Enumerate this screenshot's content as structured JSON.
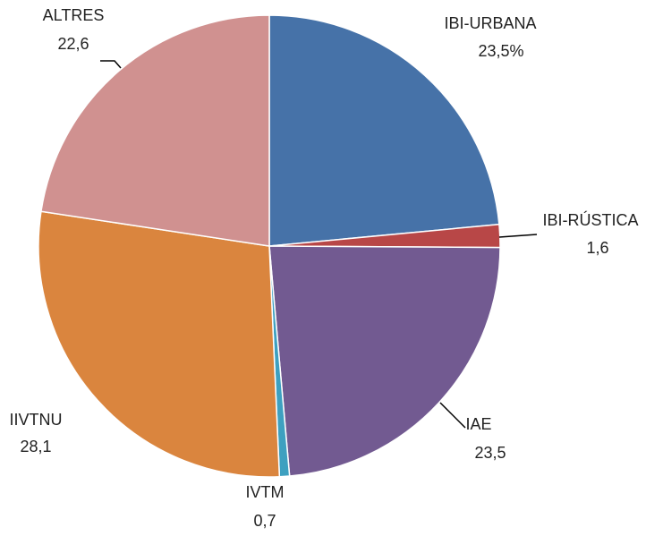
{
  "chart_data": {
    "type": "pie",
    "categories": [
      "IBI-URBANA",
      "IBI-RÚSTICA",
      "IAE",
      "IVTM",
      "IIVTNU",
      "ALTRES"
    ],
    "values": [
      23.5,
      1.6,
      23.5,
      0.7,
      28.1,
      22.6
    ],
    "value_labels": [
      "23,5%",
      "1,6",
      "23,5",
      "0,7",
      "28,1",
      "22,6"
    ],
    "colors": [
      "#4672a8",
      "#b84747",
      "#725a91",
      "#3ea0c0",
      "#da853e",
      "#d09190"
    ]
  }
}
